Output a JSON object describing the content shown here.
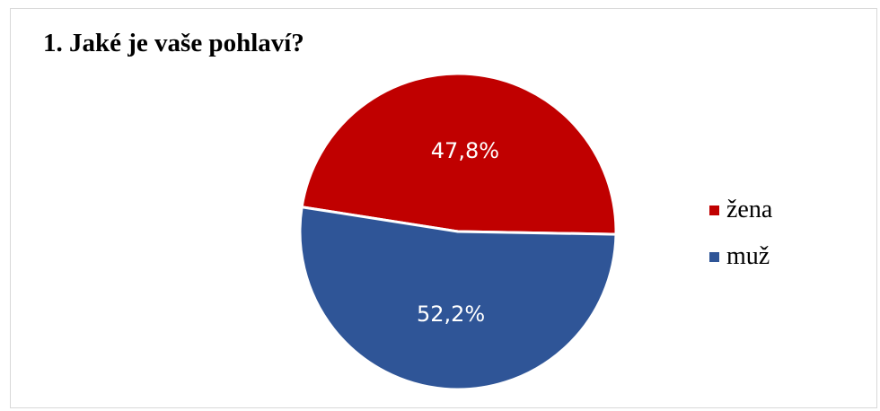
{
  "chart_data": {
    "type": "pie",
    "title": "1. Jaké je vaše pohlaví?",
    "categories": [
      "žena",
      "muž"
    ],
    "values": [
      47.8,
      52.2
    ],
    "data_labels": [
      "47,8%",
      "52,2%"
    ],
    "colors": [
      "#c00000",
      "#2f5597"
    ],
    "legend_position": "right"
  }
}
